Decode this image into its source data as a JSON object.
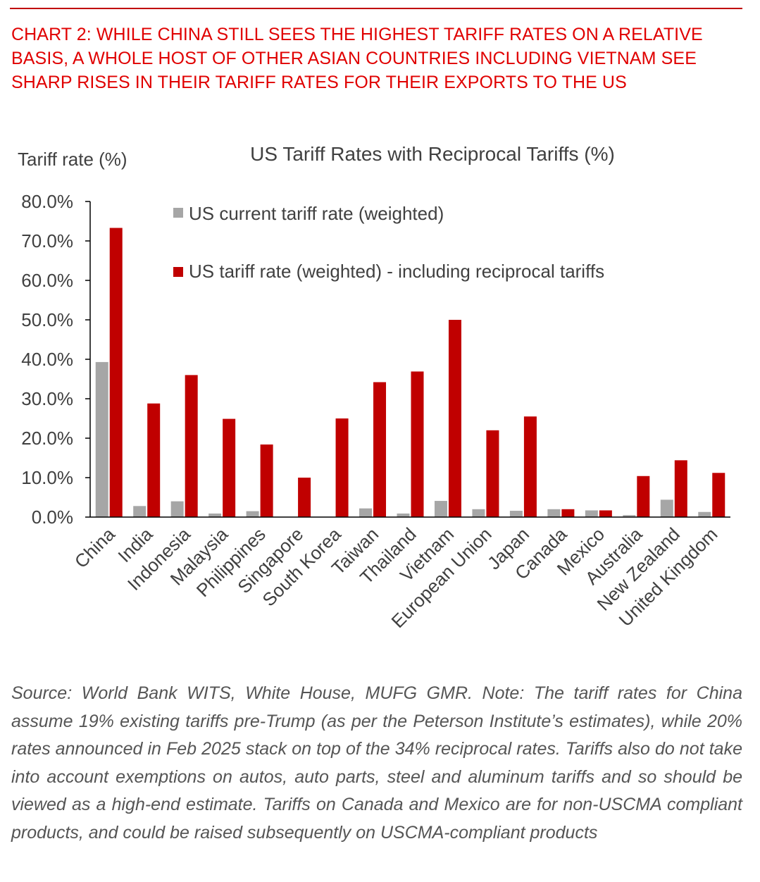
{
  "heading": "CHART 2: WHILE CHINA STILL SEES THE HIGHEST TARIFF RATES ON A RELATIVE BASIS, A WHOLE HOST OF OTHER ASIAN COUNTRIES INCLUDING VIETNAM SEE SHARP RISES IN THEIR TARIFF RATES FOR THEIR EXPORTS TO THE US",
  "source_note": "Source: World Bank WITS, White House, MUFG GMR. Note: The tariff rates for China assume 19% existing tariffs pre-Trump (as per the Peterson Institute’s estimates), while 20% rates announced in Feb 2025 stack on top of the 34% reciprocal rates. Tariffs also do not take into account exemptions on autos, auto parts, steel and aluminum tariffs and so should be viewed as a high-end estimate. Tariffs on Canada and Mexico are for non-USCMA compliant products, and could be raised subsequently on USCMA-compliant products",
  "colors": {
    "heading": "#e00000",
    "current_series": "#a6a6a6",
    "reciprocal_series": "#c00000",
    "axis": "#000000",
    "text": "#404040"
  },
  "chart_data": {
    "type": "bar",
    "title": "US Tariff Rates with Reciprocal Tariffs (%)",
    "xlabel": "",
    "ylabel": "Tariff rate (%)",
    "ylim": [
      0,
      80
    ],
    "yticks": [
      0,
      10,
      20,
      30,
      40,
      50,
      60,
      70,
      80
    ],
    "ytick_labels": [
      "0.0%",
      "10.0%",
      "20.0%",
      "30.0%",
      "40.0%",
      "50.0%",
      "60.0%",
      "70.0%",
      "80.0%"
    ],
    "legend_position": "top-left inside plot",
    "grid": false,
    "categories": [
      "China",
      "India",
      "Indonesia",
      "Malaysia",
      "Philippines",
      "Singapore",
      "South Korea",
      "Taiwan",
      "Thailand",
      "Vietnam",
      "European Union",
      "Japan",
      "Canada",
      "Mexico",
      "Australia",
      "New Zealand",
      "United Kingdom"
    ],
    "series": [
      {
        "name": "US current tariff rate (weighted)",
        "color": "#a6a6a6",
        "values": [
          39.3,
          2.8,
          4.0,
          0.9,
          1.5,
          0.0,
          0.0,
          2.2,
          0.9,
          4.1,
          2.0,
          1.6,
          2.0,
          1.7,
          0.5,
          4.4,
          1.3
        ]
      },
      {
        "name": "US tariff rate (weighted) - including reciprocal tariffs",
        "color": "#c00000",
        "values": [
          73.3,
          28.8,
          36.0,
          24.9,
          18.4,
          10.0,
          25.0,
          34.2,
          36.9,
          50.0,
          22.0,
          25.5,
          2.0,
          1.7,
          10.4,
          14.4,
          11.2
        ]
      }
    ]
  }
}
